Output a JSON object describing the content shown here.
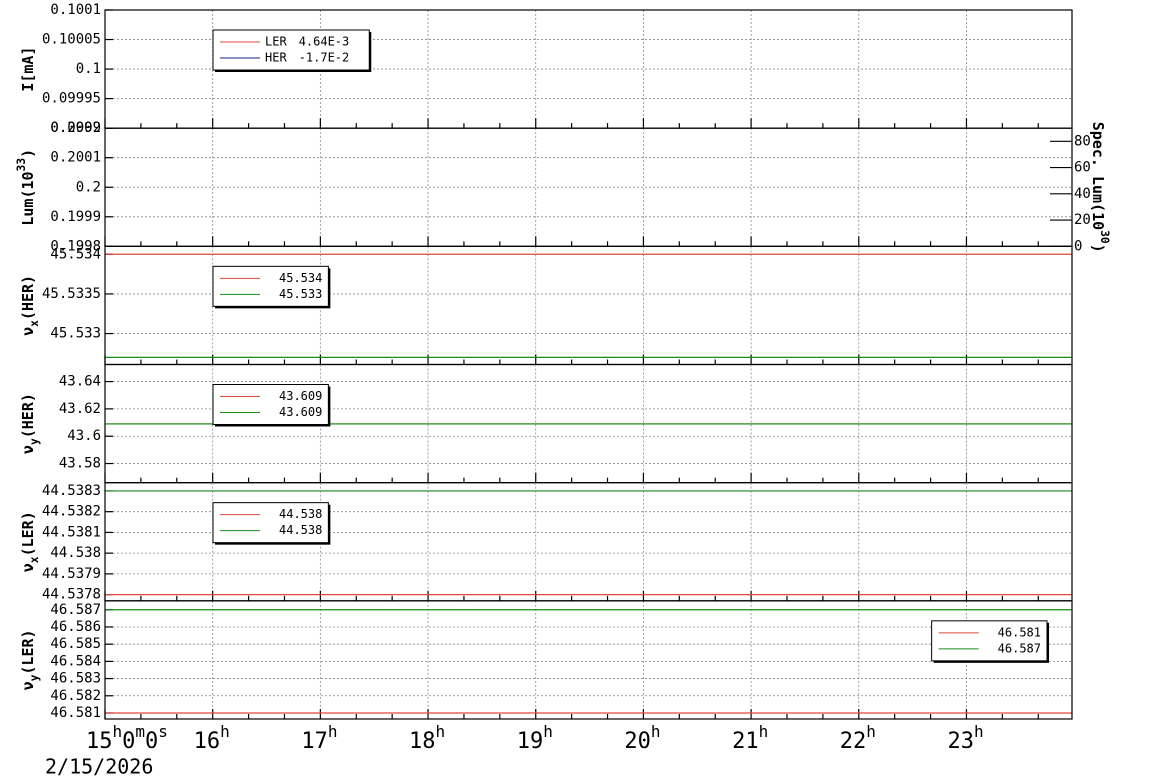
{
  "chart_data": {
    "type": "line",
    "grid": true,
    "date_label": "2/15/2026",
    "xlim": [
      15,
      23.98
    ],
    "xticks": [
      {
        "value": 15,
        "label": "15h0m0s"
      },
      {
        "value": 16,
        "label": "16h"
      },
      {
        "value": 17,
        "label": "17h"
      },
      {
        "value": 18,
        "label": "18h"
      },
      {
        "value": 19,
        "label": "19h"
      },
      {
        "value": 20,
        "label": "20h"
      },
      {
        "value": 21,
        "label": "21h"
      },
      {
        "value": 22,
        "label": "22h"
      },
      {
        "value": 23,
        "label": "23h"
      }
    ],
    "panels": [
      {
        "ylabel": [
          {
            "text": "I[mA]"
          }
        ],
        "ylim": [
          0.0999,
          0.1001
        ],
        "yticks": [
          0.0999,
          0.09995,
          0.1,
          0.10005,
          0.1001
        ],
        "legend": "upper left",
        "series": [
          {
            "name": "LER",
            "color": "#e0483c",
            "value": 0.00464,
            "value_label": "4.64E-3"
          },
          {
            "name": "HER",
            "color": "#1c1c8c",
            "value": -0.017,
            "value_label": "-1.7E-2"
          }
        ]
      },
      {
        "ylabel": [
          {
            "text": "Lum(10"
          },
          {
            "text": "33",
            "shift": "super"
          },
          {
            "text": ")"
          }
        ],
        "ylim": [
          0.1998,
          0.2002
        ],
        "yticks": [
          0.1998,
          0.1999,
          0.2,
          0.2001,
          0.2002
        ],
        "y2label": [
          {
            "text": "Spec. Lum(10"
          },
          {
            "text": "30",
            "shift": "super"
          },
          {
            "text": ")"
          }
        ],
        "y2lim": [
          0,
          90
        ],
        "y2ticks": [
          0,
          20,
          40,
          60,
          80
        ],
        "series": []
      },
      {
        "ylabel": [
          {
            "text": "ν"
          },
          {
            "text": "x",
            "shift": "sub"
          },
          {
            "text": "(HER)"
          }
        ],
        "ylim": [
          45.53261,
          45.5341
        ],
        "yticks": [
          45.533,
          45.5335,
          45.534
        ],
        "legend": "upper left",
        "series": [
          {
            "color": "#e0483c",
            "value": 45.534
          },
          {
            "color": "#1a8a1a",
            "value": 45.5327,
            "value_label": "45.533"
          }
        ]
      },
      {
        "ylabel": [
          {
            "text": "ν"
          },
          {
            "text": "y",
            "shift": "sub"
          },
          {
            "text": "(HER)"
          }
        ],
        "ylim": [
          43.566,
          43.6525
        ],
        "yticks": [
          43.58,
          43.6,
          43.62,
          43.64
        ],
        "legend": "upper left",
        "series": [
          {
            "color": "#e0483c",
            "value": 43.609
          },
          {
            "color": "#1a8a1a",
            "value": 43.609
          }
        ]
      },
      {
        "ylabel": [
          {
            "text": "ν"
          },
          {
            "text": "x",
            "shift": "sub"
          },
          {
            "text": "(LER)"
          }
        ],
        "ylim": [
          44.53777,
          44.53834
        ],
        "yticks": [
          44.5378,
          44.5379,
          44.538,
          44.5381,
          44.5382,
          44.5383
        ],
        "legend": "upper left",
        "series": [
          {
            "color": "#e0483c",
            "value": 44.5378,
            "value_label": "44.538"
          },
          {
            "color": "#1a8a1a",
            "value": 44.5383,
            "value_label": "44.538"
          }
        ]
      },
      {
        "ylabel": [
          {
            "text": "ν"
          },
          {
            "text": "y",
            "shift": "sub"
          },
          {
            "text": "(LER)"
          }
        ],
        "ylim": [
          46.58065,
          46.58752
        ],
        "yticks": [
          46.581,
          46.582,
          46.583,
          46.584,
          46.585,
          46.586,
          46.587
        ],
        "legend": "upper right",
        "series": [
          {
            "color": "#e0483c",
            "value": 46.581
          },
          {
            "color": "#1a8a1a",
            "value": 46.587
          }
        ]
      }
    ]
  }
}
